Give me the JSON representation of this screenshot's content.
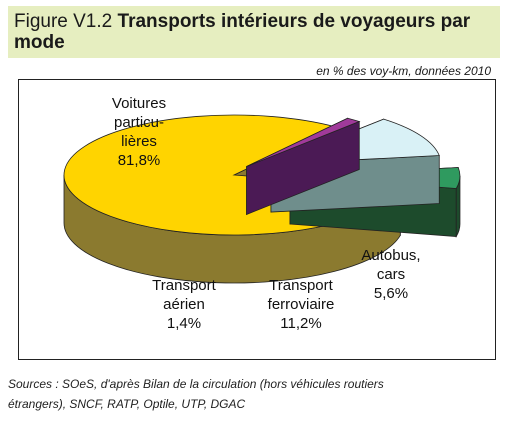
{
  "figure": {
    "label": "Figure V1.2",
    "title_main": "Transports intérieurs de voyageurs par mode",
    "subtitle": "en % des voy-km, données 2010",
    "source_line1": "Sources : SOeS, d'après Bilan de la  circulation (hors véhicules routiers",
    "source_line2": "étrangers), SNCF, RATP, Optile, UTP, DGAC"
  },
  "chart_data": {
    "type": "pie",
    "title": "Transports intérieurs de voyageurs par mode",
    "subtitle": "en % des voy-km, données 2010",
    "slices": [
      {
        "lines": [
          "Voitures",
          "particu-",
          "lières",
          "81,8%"
        ],
        "value": 81.8,
        "top": "#ffd400",
        "side": "#8b7a2f"
      },
      {
        "lines": [
          "Transport",
          "aérien",
          "1,4%"
        ],
        "value": 1.4,
        "top": "#a03a9a",
        "side": "#4b1a55"
      },
      {
        "lines": [
          "Transport",
          "ferroviaire",
          "11,2%"
        ],
        "value": 11.2,
        "top": "#d9f1f6",
        "side": "#6f8e8c"
      },
      {
        "lines": [
          "Autobus,",
          "cars",
          "5,6%"
        ],
        "value": 5.6,
        "top": "#2f9a5f",
        "side": "#1d4b2c"
      }
    ]
  }
}
